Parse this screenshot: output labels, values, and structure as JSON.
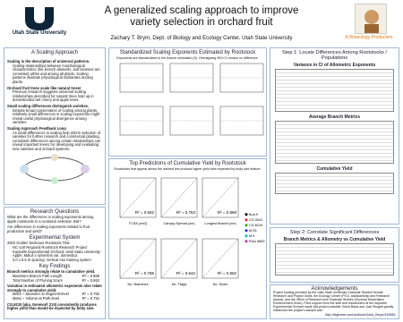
{
  "header": {
    "logo": "Utah State University",
    "title": "A generalized scaling approach to improve variety selection in orchard fruit",
    "author": "Zachary T. Brym, Dept. of Biology and Ecology Center, Utah State University",
    "credit": "A Wineology Production"
  },
  "left": {
    "scaling": {
      "heading": "A Scaling Approach",
      "paragraphs": [
        {
          "lead": "Scaling is the description of universal patterns.",
          "text": "Scaling relationships between morphological characteristics, like branch diameter, and biomass are consistent within and among all plants. Scaling patterns illustrate physiological similarities among plants."
        },
        {
          "lead": "Orchard fruit trees scale like natural trees!",
          "text": "Previous research suggests universal scaling relationships described for natural trees hold up in domesticated tart cherry and apple trees."
        },
        {
          "lead": "Small scaling differences distinguish varieties.",
          "text": "Despite broad conservation of scaling among plants, relatively small differences in scaling exponents might reveal useful physiological divergence among varieties."
        },
        {
          "lead": "Scaling Approach Feedback Loop",
          "text": "As small differences in scaling help inform selection of varieties for further research and commercial planting, consistent differences among certain relationships can reveal important levers for developing and evaluating new varieties and orchard systems."
        }
      ]
    },
    "questions": {
      "heading": "Research Questions",
      "items": [
        "What are the differences in scaling exponents among apple rootstocks in a rootstock selection trial?",
        "Are differences in scaling exponents related to fruit production and yield?"
      ]
    },
    "system": {
      "heading": "Experimental System",
      "items": [
        "2002 Golden Delicious Rootstock Trial",
        "NC-140 Regional Rootstock Research Project",
        "Kaysville Experimental Orchard, Utah State University",
        "Apple; Malus x sylvestris var. domestica",
        "3.0 x 5.5 m spacing; Vertical Axe training system"
      ]
    },
    "findings": {
      "heading": "Key Findings",
      "lead1": "Branch metrics strongly relate to cumulative yield.",
      "rows1": [
        {
          "label": "Maximum Branch Path Length",
          "value": "R² = 0.868"
        },
        {
          "label": "Total Number of Pruning Scars",
          "value": "R² = 0.862"
        }
      ],
      "lead2": "Variation in estimated allometric exponents also relate strongly to cumulative yield.",
      "rows2": [
        {
          "label": "Mass ~ Diameter at Segment-level",
          "value": "R² = 0.782"
        },
        {
          "label": "Mass ~ Volume at Path-level",
          "value": "R² = 0.752"
        }
      ],
      "lead3": "CG.6210 (aka, Geneva® 210) consistently produces higher yield than would be expected by body size."
    }
  },
  "middle": {
    "exponents": {
      "heading": "Standardized Scaling Exponents Estimated by Rootstock",
      "caption": "Exponents are standardized to the branch estimation (0). Overlapping 95% CI means no difference."
    },
    "predictions": {
      "heading": "Top Predictions of Cumulative Yield by Rootstock",
      "caption": "Rootstocks that appear above the dashed line produce higher yield than expected by body size feature.",
      "panels": [
        {
          "r2": "R² = 0.592",
          "xlabel": "TCSA (cm2)"
        },
        {
          "r2": "R² = 0.763",
          "xlabel": "Canopy Spread (cm)"
        },
        {
          "r2": "R² = 0.868",
          "xlabel": "Longest Branch (cm)"
        },
        {
          "r2": "R² = 0.786",
          "xlabel": "No. Branches"
        },
        {
          "r2": "R² = 0.542",
          "xlabel": "No. Twigs"
        },
        {
          "r2": "R² = 0.862",
          "xlabel": "No. Scars"
        }
      ],
      "legend": [
        "Bud.9",
        "CG.3041",
        "CG.6210",
        "M.26",
        "M.9",
        "PiAu.5683"
      ]
    }
  },
  "right": {
    "step1": {
      "heading": "Step 1: Locate Differences Among Rootstocks / Populations",
      "tables": [
        "Variance in CI of Allometric Exponents",
        "Average Branch Metrics",
        "Cumulative Yield"
      ]
    },
    "step2": {
      "heading": "Step 2: Correlate Significant Differences",
      "table": "Branch Metrics & Allometry vs Cumulative Yield"
    },
    "ack": {
      "heading": "Acknowledgements",
      "text": "Project funding provided by the Utah State University Graduate Student Senate Research and Project Grant, the Ecology Center (Ph.D. Assistantship and Research Award), and the Office of Research and Graduate Studies (Doctoral Dissertation Enhancement Grant). Field support from the staff and researchers at the Kaysville Experimental Orchard made this project possible. Brent Black and Josh Brugett greatly influenced the project's sample size.",
      "url": "http://figshare.com/authors/Zack_Brym/439851"
    }
  }
}
